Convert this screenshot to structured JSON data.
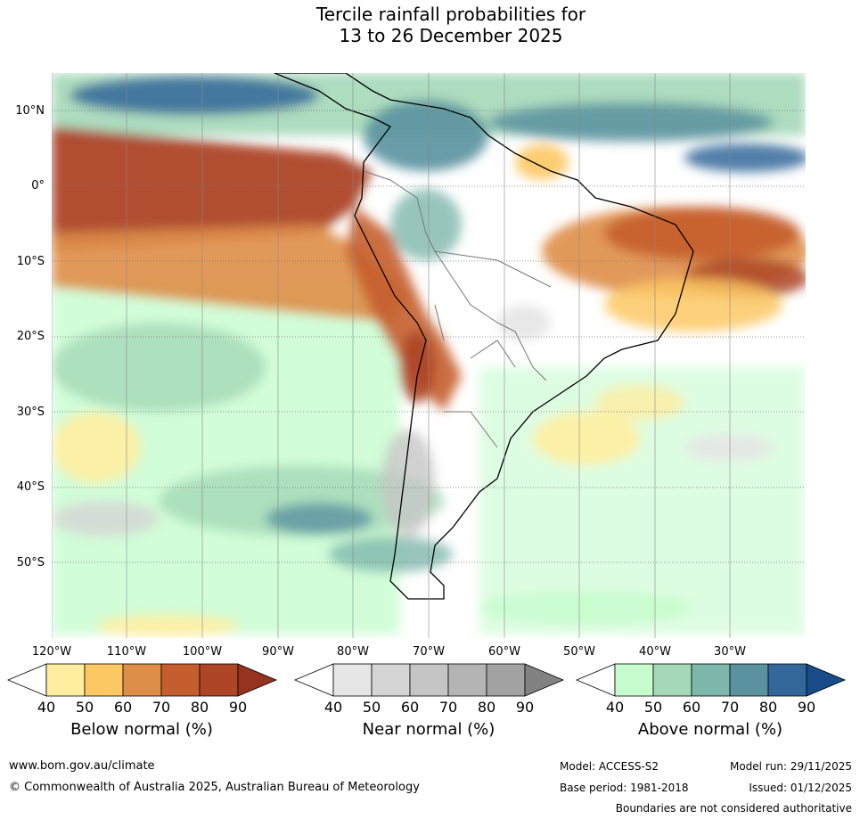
{
  "title_line1": "Tercile rainfall probabilities for",
  "title_line2": "13 to 26 December 2025",
  "lat_labels": [
    "10°N",
    "0°",
    "10°S",
    "20°S",
    "30°S",
    "40°S",
    "50°S"
  ],
  "lon_labels": [
    "120°W",
    "110°W",
    "100°W",
    "90°W",
    "80°W",
    "70°W",
    "60°W",
    "50°W",
    "40°W",
    "30°W"
  ],
  "colorbars": [
    {
      "title": "Below normal (%)",
      "ticks": [
        "40",
        "50",
        "60",
        "70",
        "80",
        "90"
      ],
      "colors": [
        "#ffeea0",
        "#fdc864",
        "#de8e48",
        "#c55e2e",
        "#ad4526",
        "#963220"
      ]
    },
    {
      "title": "Near normal (%)",
      "ticks": [
        "40",
        "50",
        "60",
        "70",
        "80",
        "90"
      ],
      "colors": [
        "#e6e6e6",
        "#d5d5d5",
        "#c5c5c5",
        "#b4b4b4",
        "#a2a2a2",
        "#828282"
      ]
    },
    {
      "title": "Above normal (%)",
      "ticks": [
        "40",
        "50",
        "60",
        "70",
        "80",
        "90"
      ],
      "colors": [
        "#c6fcce",
        "#a4d8b8",
        "#7db6ab",
        "#5a92a0",
        "#33679a",
        "#174c88"
      ]
    }
  ],
  "footer": {
    "url": "www.bom.gov.au/climate",
    "copyright": "© Commonwealth of Australia 2025, Australian Bureau of Meteorology",
    "model": "Model: ACCESS-S2",
    "base_period": "Base period: 1981-2018",
    "model_run": "Model run: 29/11/2025",
    "issued": "Issued: 01/12/2025",
    "disclaimer": "Boundaries are not considered authoritative"
  }
}
